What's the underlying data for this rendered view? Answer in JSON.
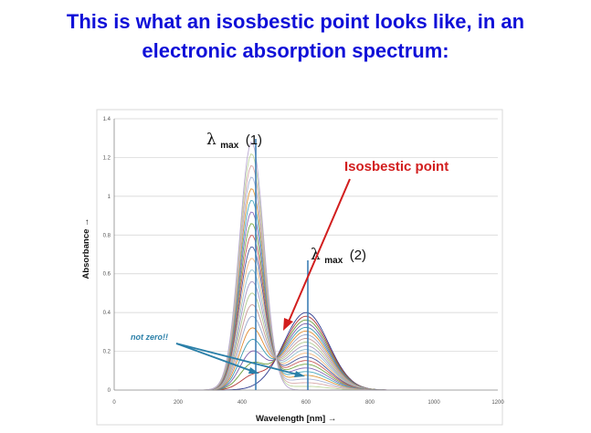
{
  "slide": {
    "title_line1": "This is what an isosbestic point looks like, in an",
    "title_line2": "electronic absorption spectrum:"
  },
  "chart_data": {
    "type": "line",
    "xlabel": "Wavelength [nm] →",
    "ylabel": "Absorbance →",
    "xlim": [
      0,
      1200
    ],
    "ylim": [
      0,
      1.4
    ],
    "x_ticks": [
      "0",
      "200",
      "400",
      "600",
      "800",
      "1000",
      "1200"
    ],
    "y_ticks": [
      "0",
      "0.2",
      "0.4",
      "0.6",
      "0.8",
      "1",
      "1.2",
      "1.4"
    ],
    "grid": "horizontal",
    "legend": "none",
    "series_count": 22,
    "band1_center_nm": 430,
    "band1_max_absorbance": 1.28,
    "band2_center_nm": 600,
    "band2_max_absorbance": 0.4,
    "series_colors": [
      "#2e3b8f",
      "#b33a3a",
      "#6a9a3a",
      "#7a5aa8",
      "#3a9ab0",
      "#e08a30",
      "#9aa6c8",
      "#c89a9a",
      "#b0c890",
      "#a898c0",
      "#90c0d0",
      "#f0b880",
      "#4a5a9f",
      "#c85a5a",
      "#7aaa4a",
      "#8a6ab8",
      "#4aaac0",
      "#e09a40",
      "#aab6d8",
      "#d8aaaa",
      "#c0d8a0",
      "#b8a8d0"
    ],
    "isosbestic_point": {
      "x": 510,
      "y": 0.27
    },
    "annotations": {
      "lambda_symbol": "λ",
      "lambda_sub": "max",
      "lambda1_num": "(1)",
      "lambda2_num": "(2)",
      "isosbestic_label": "Isosbestic point",
      "not_zero_label": "not zero!!"
    },
    "annotation_colors": {
      "isosbestic": "#d21e1e",
      "not_zero": "#2a7fa8",
      "lambda_lines": "#3d7fb5"
    }
  }
}
